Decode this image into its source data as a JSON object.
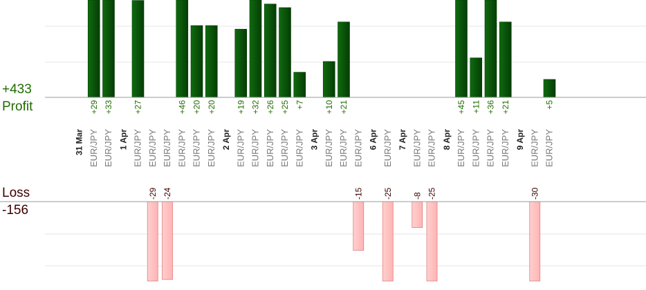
{
  "profit": {
    "title": "Profit",
    "total": "+433"
  },
  "loss": {
    "title": "Loss",
    "total": "-156"
  },
  "colors": {
    "profit_bar": "#0e6b0e",
    "profit_bar_dark": "#063d06",
    "loss_bar": "#ffb3b3",
    "loss_bar_border": "#e08080",
    "profit_text": "#1f6b00",
    "loss_text": "#3a0000",
    "grid": "#e6e6e6",
    "axis": "#999999"
  },
  "chart_data": {
    "type": "bar",
    "grid": true,
    "categories": [
      "31 Mar",
      "EUR/JPY",
      "EUR/JPY",
      "1 Apr",
      "EUR/JPY",
      "EUR/JPY",
      "EUR/JPY",
      "EUR/JPY",
      "EUR/JPY",
      "EUR/JPY",
      "2 Apr",
      "EUR/JPY",
      "EUR/JPY",
      "EUR/JPY",
      "EUR/JPY",
      "EUR/JPY",
      "3 Apr",
      "EUR/JPY",
      "EUR/JPY",
      "EUR/JPY",
      "6 Apr",
      "EUR/JPY",
      "7 Apr",
      "EUR/JPY",
      "EUR/JPY",
      "8 Apr",
      "EUR/JPY",
      "EUR/JPY",
      "EUR/JPY",
      "EUR/JPY",
      "9 Apr",
      "EUR/JPY",
      "EUR/JPY"
    ],
    "date_categories": [
      "31 Mar",
      "1 Apr",
      "2 Apr",
      "3 Apr",
      "6 Apr",
      "7 Apr",
      "8 Apr",
      "9 Apr"
    ],
    "series": [
      {
        "values": [
          null,
          29,
          33,
          null,
          27,
          null,
          null,
          46,
          20,
          20,
          null,
          19,
          32,
          26,
          25,
          7,
          null,
          10,
          21,
          null,
          null,
          null,
          null,
          null,
          null,
          null,
          45,
          11,
          36,
          21,
          null,
          null,
          5
        ],
        "labels": [
          null,
          "+29",
          "+33",
          null,
          "+27",
          null,
          null,
          "+46",
          "+20",
          "+20",
          null,
          "+19",
          "+32",
          "+26",
          "+25",
          "+7",
          null,
          "+10",
          "+21",
          null,
          null,
          null,
          null,
          null,
          null,
          null,
          "+45",
          "+11",
          "+36",
          "+21",
          null,
          null,
          "+5"
        ]
      },
      {
        "values": [
          null,
          null,
          null,
          null,
          null,
          -29,
          -24,
          null,
          null,
          null,
          null,
          null,
          null,
          null,
          null,
          null,
          null,
          null,
          null,
          -15,
          null,
          -25,
          null,
          -8,
          -25,
          null,
          null,
          null,
          null,
          null,
          null,
          -30,
          null
        ],
        "labels": [
          null,
          null,
          null,
          null,
          null,
          "-29",
          "-24",
          null,
          null,
          null,
          null,
          null,
          null,
          null,
          null,
          null,
          null,
          null,
          null,
          "-15",
          null,
          "-25",
          null,
          "-8",
          "-25",
          null,
          null,
          null,
          null,
          null,
          null,
          "-30",
          null
        ]
      }
    ],
    "profit_ylim": [
      0,
      27
    ],
    "loss_ylim": [
      -24,
      0
    ]
  }
}
